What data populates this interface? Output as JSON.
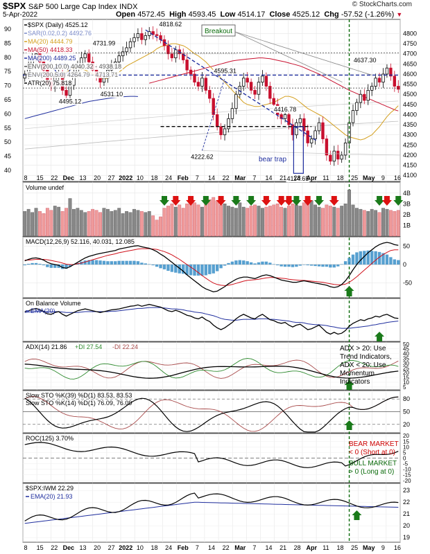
{
  "header": {
    "symbol": "$SPX",
    "name": "S&P 500 Large Cap Index",
    "exchange": "INDX",
    "date": "5-Apr-2022",
    "open_label": "Open",
    "open": "4572.45",
    "high_label": "High",
    "high": "4593.45",
    "low_label": "Low",
    "low": "4514.17",
    "close_label": "Close",
    "close": "4525.12",
    "chg_label": "Chg",
    "chg": "-57.52 (-1.26%)",
    "brand": "© StockCharts.com"
  },
  "colors": {
    "up_candle": "#000000",
    "down_candle": "#c8102e",
    "ma20": "#d4a020",
    "ma50": "#c8102e",
    "ma200": "#1f2e9e",
    "sar": "#7a8ac8",
    "vol_up": "#ef9a9a",
    "vol_down": "#888888",
    "arrow_green": "#1a7a1a",
    "arrow_red": "#dd1111",
    "breakout_line": "#0a6a0a",
    "macd_hist": "#3a8fc8",
    "annot_blue": "#1f2e9e"
  },
  "chart_data": [
    {
      "type": "line",
      "panel": "price",
      "legend": [
        "$SPX (Daily) 4525.12",
        "SAR(0.02,0.2) 4492.76",
        "MA(20) 4444.79",
        "MA(50) 4418.33",
        "MA(200) 4489.25",
        "ENV(200,10.0) 4040.32 - 4938.18",
        "ENV(200,5.0) 4264.79 - 4713.71",
        "ATR(20) 75.818"
      ],
      "right_axis": [
        4100,
        4150,
        4200,
        4250,
        4300,
        4350,
        4400,
        4450,
        4500,
        4550,
        4600,
        4650,
        4700,
        4750,
        4800
      ],
      "left_axis": [
        40,
        45,
        50,
        55,
        60,
        65,
        70,
        75,
        80,
        85,
        90
      ],
      "x_labels": [
        "8",
        "15",
        "22",
        "Dec",
        "13",
        "20",
        "27",
        "2022",
        "10",
        "18",
        "24",
        "Feb",
        "7",
        "14",
        "22",
        "Mar",
        "7",
        "14",
        "21",
        "28",
        "Apr",
        "11",
        "18",
        "25",
        "May",
        "9",
        "16"
      ],
      "ylim": [
        4070,
        4870
      ],
      "annotations": [
        "4818.62",
        "4731.99",
        "4595.31",
        "4531.10",
        "4495.12",
        "4416.78",
        "4222.62",
        "4114.65",
        "4637.30",
        "bear trap",
        "Breakout"
      ],
      "close": [
        4600,
        4650,
        4680,
        4700,
        4660,
        4620,
        4560,
        4540,
        4590,
        4600,
        4520,
        4495,
        4545,
        4610,
        4640,
        4680,
        4700,
        4660,
        4620,
        4590,
        4560,
        4580,
        4620,
        4640,
        4660,
        4690,
        4710,
        4730,
        4760,
        4780,
        4800,
        4770,
        4790,
        4810,
        4795,
        4790,
        4770,
        4740,
        4700,
        4680,
        4720,
        4700,
        4670,
        4620,
        4600,
        4560,
        4540,
        4580,
        4520,
        4480,
        4400,
        4340,
        4300,
        4330,
        4380,
        4430,
        4500,
        4540,
        4580,
        4560,
        4520,
        4500,
        4560,
        4590,
        4540,
        4480,
        4450,
        4400,
        4380,
        4400,
        4350,
        4300,
        4360,
        4380,
        4320,
        4260,
        4280,
        4320,
        4360,
        4280,
        4200,
        4170,
        4220,
        4180,
        4200,
        4260,
        4360,
        4420,
        4460,
        4500,
        4470,
        4520,
        4540,
        4580,
        4560,
        4600,
        4630,
        4590,
        4540,
        4525
      ],
      "series": [
        {
          "name": "MA(20)",
          "values": [
            4590,
            4600,
            4610,
            4620,
            4630,
            4630,
            4625,
            4620,
            4610,
            4600,
            4590,
            4580,
            4575,
            4580,
            4590,
            4600,
            4610,
            4625,
            4640,
            4650,
            4660,
            4670,
            4680,
            4690,
            4700,
            4710,
            4725,
            4735,
            4740,
            4745,
            4750,
            4750,
            4745,
            4740,
            4730,
            4715,
            4700,
            4690,
            4675,
            4660,
            4640,
            4620,
            4600,
            4580,
            4560,
            4540,
            4520,
            4500,
            4480,
            4460,
            4450,
            4445,
            4440,
            4440,
            4445,
            4450,
            4455,
            4460,
            4470,
            4480,
            4490,
            4490,
            4485,
            4475,
            4460,
            4445,
            4430,
            4420,
            4410,
            4400,
            4390,
            4375,
            4360,
            4345,
            4330,
            4315,
            4300,
            4290,
            4285,
            4280,
            4275,
            4280,
            4290,
            4300,
            4320,
            4340,
            4365,
            4390,
            4410,
            4425,
            4444
          ]
        },
        {
          "name": "MA(50)",
          "values": [
            4555,
            4560,
            4565,
            4570,
            4575,
            4580,
            4585,
            4590,
            4595,
            4600,
            4605,
            4610,
            4615,
            4620,
            4625,
            4630,
            4635,
            4640,
            4645,
            4650,
            4655,
            4660,
            4665,
            4668,
            4670,
            4672,
            4674,
            4676,
            4678,
            4680,
            4680,
            4678,
            4676,
            4672,
            4668,
            4664,
            4660,
            4655,
            4650,
            4645,
            4640,
            4632,
            4624,
            4616,
            4608,
            4600,
            4590,
            4580,
            4570,
            4560,
            4550,
            4540,
            4530,
            4520,
            4512,
            4504,
            4496,
            4488,
            4480,
            4472,
            4464,
            4456,
            4448,
            4440,
            4432,
            4424,
            4418
          ]
        },
        {
          "name": "MA(200)",
          "values": [
            4380,
            4385,
            4390,
            4395,
            4400,
            4405,
            4410,
            4415,
            4420,
            4425,
            4430,
            4435,
            4440,
            4445,
            4450,
            4455,
            4460,
            4465,
            4468,
            4471,
            4474,
            4477,
            4480,
            4482,
            4484,
            4486,
            4488,
            4489,
            4490,
            4490,
            4489
          ]
        }
      ]
    },
    {
      "type": "bar",
      "panel": "volume",
      "legend": [
        "Volume undef"
      ],
      "right_axis": [
        "1B",
        "2B",
        "3B",
        "4B"
      ],
      "ylim": [
        0,
        4.5
      ],
      "values": [
        2.3,
        2.5,
        2.2,
        2.6,
        2.3,
        2.1,
        2.6,
        2.4,
        2.8,
        2.7,
        2.3,
        2.6,
        3.5,
        2.5,
        2.6,
        2.4,
        2.2,
        2.3,
        2.5,
        2.4,
        2.2,
        2.6,
        2.5,
        2.3,
        2.4,
        2.6,
        2.1,
        2.3,
        2.2,
        2.5,
        2.4,
        2.3,
        2.2,
        2.3,
        1.9,
        1.5,
        1.8,
        2.6,
        2.8,
        3.0,
        2.7,
        2.9,
        2.6,
        3.0,
        3.2,
        3.1,
        2.9,
        2.7,
        3.1,
        3.4,
        3.6,
        3.3,
        2.9,
        3.0,
        2.8,
        2.7,
        2.6,
        3.1,
        2.7,
        2.6,
        2.8,
        2.9,
        2.8,
        2.6,
        2.7,
        2.8,
        2.9,
        3.0,
        2.7,
        2.6,
        2.8,
        3.0,
        2.9,
        2.8,
        3.1,
        3.2,
        3.3,
        2.9,
        2.7,
        2.6,
        2.9,
        2.8,
        2.7,
        2.6,
        2.8,
        3.0,
        4.3,
        2.9,
        2.6,
        2.5,
        2.4,
        2.3,
        2.5,
        2.4,
        2.2,
        2.6,
        2.5,
        2.4,
        2.3,
        2.4
      ]
    },
    {
      "type": "line",
      "panel": "macd",
      "legend": [
        "MACD(12,26,9) 52.116, 40.031, 12.085"
      ],
      "right_axis": [
        -50,
        0,
        50
      ],
      "ylim": [
        -90,
        75
      ],
      "macd": [
        10,
        14,
        17,
        18,
        16,
        12,
        6,
        2,
        0,
        -2,
        -8,
        -10,
        -6,
        0,
        6,
        12,
        18,
        22,
        25,
        28,
        30,
        32,
        34,
        36,
        38,
        42,
        44,
        46,
        48,
        50,
        51,
        48,
        46,
        44,
        40,
        35,
        28,
        22,
        14,
        6,
        -2,
        -10,
        -18,
        -28,
        -36,
        -44,
        -52,
        -60,
        -66,
        -70,
        -74,
        -72,
        -66,
        -60,
        -52,
        -46,
        -40,
        -36,
        -34,
        -34,
        -36,
        -38,
        -34,
        -30,
        -28,
        -30,
        -34,
        -38,
        -42,
        -44,
        -46,
        -48,
        -48,
        -46,
        -44,
        -46,
        -48,
        -50,
        -52,
        -54,
        -56,
        -60,
        -62,
        -60,
        -54,
        -44,
        -30,
        -14,
        0,
        12,
        22,
        32,
        40,
        48,
        54,
        58,
        60,
        58,
        54,
        52
      ],
      "signal": [
        12,
        12,
        13,
        14,
        14,
        14,
        13,
        11,
        9,
        7,
        4,
        1,
        0,
        0,
        2,
        4,
        7,
        10,
        13,
        16,
        19,
        22,
        25,
        27,
        29,
        32,
        34,
        36,
        38,
        40,
        42,
        43,
        43,
        43,
        42,
        41,
        38,
        35,
        31,
        26,
        20,
        14,
        7,
        0,
        -7,
        -14,
        -22,
        -30,
        -37,
        -44,
        -50,
        -54,
        -56,
        -57,
        -56,
        -54,
        -51,
        -48,
        -45,
        -43,
        -42,
        -41,
        -40,
        -38,
        -36,
        -35,
        -35,
        -36,
        -37,
        -38,
        -40,
        -41,
        -42,
        -43,
        -43,
        -44,
        -45,
        -46,
        -47,
        -48,
        -50,
        -52,
        -54,
        -55,
        -55,
        -53,
        -48,
        -41,
        -33,
        -24,
        -15,
        -6,
        3,
        12,
        20,
        27,
        33,
        38,
        40,
        40
      ],
      "histogram": [
        -2,
        2,
        4,
        4,
        2,
        -2,
        -7,
        -9,
        -9,
        -9,
        -12,
        -11,
        -6,
        0,
        4,
        8,
        11,
        12,
        12,
        12,
        11,
        10,
        9,
        9,
        9,
        10,
        10,
        10,
        10,
        10,
        9,
        5,
        3,
        1,
        -2,
        -6,
        -10,
        -13,
        -17,
        -20,
        -22,
        -24,
        -25,
        -28,
        -29,
        -30,
        -30,
        -30,
        -29,
        -26,
        -24,
        -18,
        -10,
        -3,
        4,
        8,
        11,
        12,
        11,
        9,
        6,
        3,
        6,
        8,
        8,
        5,
        1,
        -2,
        -5,
        -6,
        -6,
        -7,
        -6,
        -3,
        -1,
        -2,
        -3,
        -4,
        -5,
        -6,
        -6,
        -8,
        -8,
        -5,
        1,
        9,
        18,
        27,
        33,
        36,
        37,
        38,
        37,
        36,
        34,
        31,
        27,
        20,
        14,
        12
      ]
    },
    {
      "type": "line",
      "panel": "obv",
      "legend": [
        "On Balance Volume",
        "EMA(20)"
      ],
      "obv": [
        60,
        62,
        65,
        67,
        64,
        60,
        55,
        54,
        58,
        60,
        54,
        50,
        54,
        58,
        62,
        64,
        66,
        64,
        62,
        60,
        58,
        60,
        62,
        64,
        65,
        66,
        68,
        70,
        72,
        73,
        75,
        72,
        74,
        76,
        74,
        72,
        70,
        66,
        62,
        60,
        63,
        60,
        56,
        52,
        50,
        46,
        44,
        48,
        42,
        38,
        30,
        24,
        20,
        24,
        30,
        36,
        44,
        50,
        54,
        50,
        46,
        44,
        50,
        54,
        48,
        42,
        40,
        36,
        34,
        36,
        30,
        26,
        30,
        32,
        26,
        20,
        22,
        26,
        30,
        22,
        14,
        10,
        14,
        10,
        12,
        18,
        28,
        34,
        38,
        42,
        40,
        44,
        46,
        50,
        48,
        52,
        54,
        50,
        46,
        45
      ],
      "ema": [
        58,
        59,
        60,
        61,
        61,
        61,
        60,
        60,
        60,
        60,
        59,
        58,
        58,
        58,
        58,
        59,
        60,
        60,
        60,
        60,
        60,
        60,
        60,
        61,
        61,
        62,
        63,
        64,
        65,
        66,
        67,
        67,
        68,
        69,
        69,
        69,
        69,
        68,
        67,
        66,
        66,
        65,
        64,
        62,
        61,
        59,
        58,
        57,
        55,
        53,
        51,
        48,
        45,
        43,
        42,
        41,
        41,
        42,
        43,
        43,
        43,
        43,
        44,
        44,
        44,
        43,
        43,
        42,
        41,
        40,
        39,
        37,
        36,
        36,
        35,
        33,
        32,
        31,
        31,
        30,
        29,
        27,
        26,
        24,
        23,
        23,
        23,
        24,
        25,
        26,
        27,
        28,
        30,
        31,
        33,
        34,
        36,
        37,
        38,
        39
      ]
    },
    {
      "type": "line",
      "panel": "adx",
      "legend": [
        "ADX(14) 21.86",
        "+DI 27.54",
        "-DI 22.24"
      ],
      "right_axis": [
        5,
        10,
        15,
        20,
        25,
        30,
        35,
        40,
        45,
        50
      ],
      "note": "ADX > 20: Use Trend Indicators, ADX < 20: Use Momentum Indicators"
    },
    {
      "type": "line",
      "panel": "stochastic",
      "legend": [
        "Slow STO %K(39) %D(1) 83.53, 83.53",
        "Slow STO %K(14) %D(1) 76.09, 76.09"
      ],
      "right_axis": [
        20,
        50,
        80
      ]
    },
    {
      "type": "line",
      "panel": "roc",
      "legend": [
        "ROC(125) 3.70%"
      ],
      "right_axis": [
        -20,
        -15,
        -10,
        -5,
        0,
        5,
        10,
        15,
        20
      ],
      "note_bear": "BEAR MARKET < 0 (Short at 0)",
      "note_bull": "BULL MARKET > 0 (Long at 0)"
    },
    {
      "type": "line",
      "panel": "spx_iwm",
      "legend": [
        "$SPX:IWM 22.29",
        "EMA(20) 21.93"
      ],
      "right_axis": [
        19,
        20,
        21,
        22,
        23
      ]
    }
  ]
}
